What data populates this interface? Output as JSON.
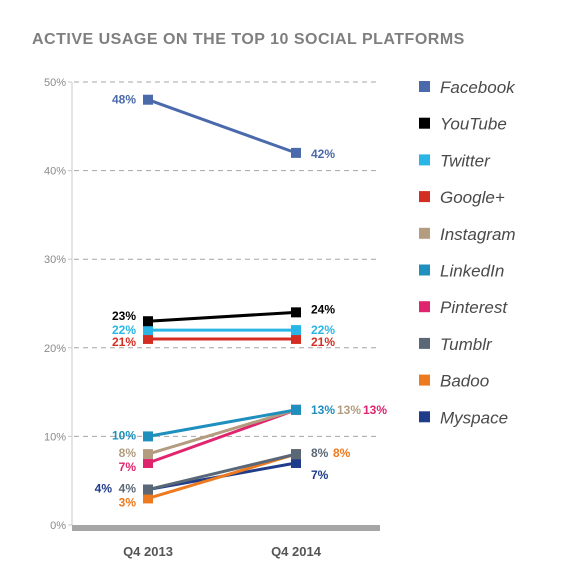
{
  "chart_data": {
    "type": "line",
    "title": "ACTIVE USAGE ON THE TOP 10 SOCIAL PLATFORMS",
    "categories": [
      "Q4 2013",
      "Q4 2014"
    ],
    "ylim": [
      0,
      50
    ],
    "yticks": [
      {
        "value": 0,
        "label": "0%"
      },
      {
        "value": 10,
        "label": "10%"
      },
      {
        "value": 20,
        "label": "20%"
      },
      {
        "value": 30,
        "label": "30%"
      },
      {
        "value": 40,
        "label": "40%"
      },
      {
        "value": 50,
        "label": "50%"
      }
    ],
    "grid": "dashed horizontal",
    "legend_position": "right",
    "series": [
      {
        "name": "Facebook",
        "color": "#4a6aab",
        "values": [
          48,
          42
        ],
        "labels": [
          "48%",
          "42%"
        ]
      },
      {
        "name": "YouTube",
        "color": "#000000",
        "values": [
          23,
          24
        ],
        "labels": [
          "23%",
          "24%"
        ]
      },
      {
        "name": "Twitter",
        "color": "#29b6e6",
        "values": [
          22,
          22
        ],
        "labels": [
          "22%",
          "22%"
        ]
      },
      {
        "name": "Google+",
        "color": "#d42e23",
        "values": [
          21,
          21
        ],
        "labels": [
          "21%",
          "21%"
        ]
      },
      {
        "name": "Instagram",
        "color": "#b39c80",
        "values": [
          8,
          13
        ],
        "labels": [
          "8%",
          "13%"
        ]
      },
      {
        "name": "LinkedIn",
        "color": "#1f8fbe",
        "values": [
          10,
          13
        ],
        "labels": [
          "10%",
          "13%"
        ]
      },
      {
        "name": "Pinterest",
        "color": "#e0246e",
        "values": [
          7,
          13
        ],
        "labels": [
          "7%",
          "13%"
        ]
      },
      {
        "name": "Tumblr",
        "color": "#5a6776",
        "values": [
          4,
          8
        ],
        "labels": [
          "4%",
          "8%"
        ]
      },
      {
        "name": "Badoo",
        "color": "#ee7a1f",
        "values": [
          3,
          8
        ],
        "labels": [
          "3%",
          "8%"
        ]
      },
      {
        "name": "Myspace",
        "color": "#1f3c8a",
        "values": [
          4,
          7
        ],
        "labels": [
          "4%",
          "7%"
        ]
      }
    ]
  }
}
